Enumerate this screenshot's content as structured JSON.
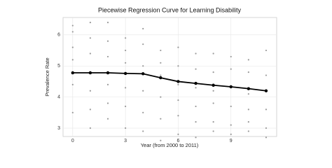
{
  "chart_data": {
    "type": "scatter",
    "title": "Piecewise Regression Curve for Learning Disability",
    "x_label": "Year (from 2000 to 2011)",
    "y_label": "Prevalence Rate",
    "xlim": [
      -0.55,
      11.6
    ],
    "xticks": [
      0,
      3,
      6,
      9
    ],
    "ylim": [
      2.73,
      6.56
    ],
    "yticks": [
      3,
      4,
      5,
      6
    ],
    "grid": true,
    "series": [
      {
        "type": "scatter",
        "color": "#9a9a9a",
        "x": [
          0,
          0,
          0,
          0,
          0,
          0,
          1,
          1,
          1,
          1,
          1,
          1,
          2,
          2,
          2,
          2,
          2,
          2,
          3,
          3,
          3,
          3,
          3,
          3,
          4,
          4,
          4,
          4,
          4,
          4,
          5,
          5,
          5,
          5,
          5,
          5,
          6,
          6,
          6,
          6,
          6,
          6,
          7,
          7,
          7,
          7,
          7,
          7,
          8,
          8,
          8,
          8,
          8,
          8,
          9,
          9,
          9,
          9,
          9,
          9,
          10,
          10,
          10,
          10,
          10,
          10,
          11,
          11,
          11,
          11,
          11,
          11
        ],
        "values": [
          6.3,
          6.1,
          5.6,
          5.2,
          4.4,
          3.5,
          6.4,
          5.9,
          5.4,
          4.2,
          3.6,
          3.0,
          6.4,
          5.8,
          5.3,
          4.4,
          3.8,
          3.3,
          5.9,
          5.5,
          5.1,
          4.3,
          3.7,
          3.0,
          6.2,
          5.7,
          5.0,
          4.2,
          3.5,
          2.9,
          5.5,
          5.1,
          4.7,
          4.0,
          3.3,
          2.6,
          5.6,
          5.0,
          4.4,
          3.9,
          3.4,
          2.8,
          5.4,
          4.9,
          4.3,
          3.7,
          3.2,
          2.7,
          5.4,
          4.8,
          4.2,
          3.8,
          3.2,
          2.9,
          5.3,
          4.9,
          4.3,
          3.7,
          3.1,
          2.8,
          5.2,
          4.8,
          4.1,
          3.6,
          3.2,
          2.9,
          5.5,
          4.7,
          4.2,
          3.6,
          3.0,
          2.7
        ]
      },
      {
        "type": "line",
        "color": "#000000",
        "x": [
          0,
          1,
          2,
          3,
          4,
          5,
          6,
          7,
          8,
          9,
          10,
          11
        ],
        "values": [
          4.78,
          4.78,
          4.78,
          4.76,
          4.75,
          4.62,
          4.5,
          4.44,
          4.38,
          4.33,
          4.27,
          4.2
        ]
      }
    ]
  }
}
